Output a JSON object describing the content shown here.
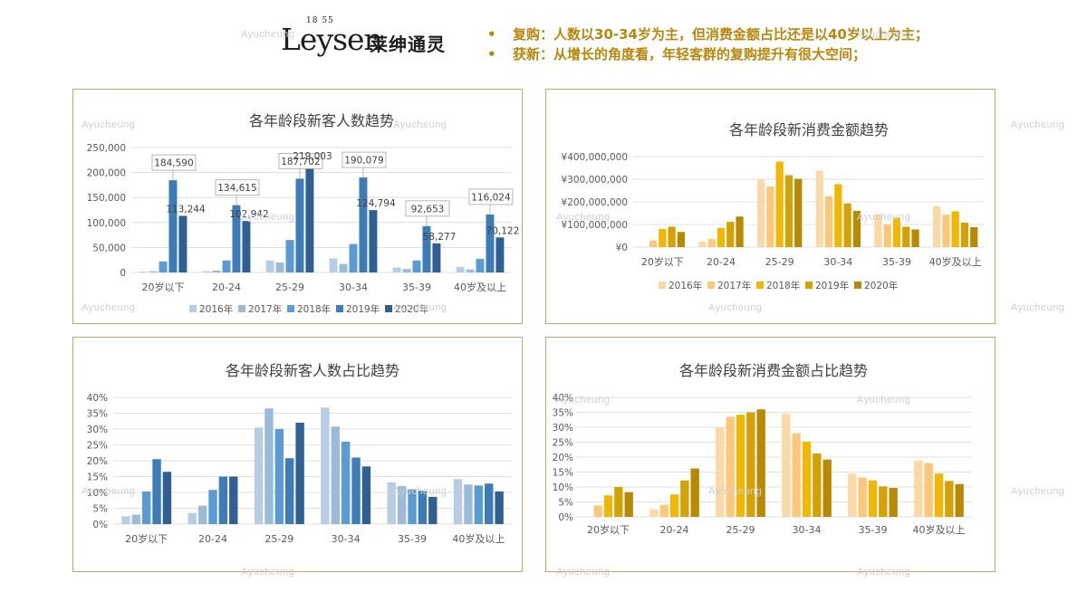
{
  "brand": {
    "wordmark": "Leysen",
    "year": "18 55",
    "chinese_name": "莱绅通灵"
  },
  "watermark": "Ayucheung",
  "bullets": [
    {
      "marker": "•",
      "text": "复购：人数以30-34岁为主，但消费金额占比还是以40岁以上为主；"
    },
    {
      "marker": "•",
      "text": "获新：从增长的角度看，年轻客群的复购提升有很大空间；"
    }
  ],
  "colors": {
    "accent_text": "#b8860b",
    "border": "#bfa76a",
    "blue_series": [
      "#b8cce4",
      "#9bbbd9",
      "#5b9bd5",
      "#3e7cb8",
      "#2f5f93"
    ],
    "gold_series": [
      "#fbd9a7",
      "#fdc77a",
      "#f2b705",
      "#d4a106",
      "#b88a04"
    ]
  },
  "chart_data": [
    {
      "type": "bar",
      "title": "各年龄段新客人数趋势",
      "categories": [
        "20岁以下",
        "20-24",
        "25-29",
        "30-34",
        "35-39",
        "40岁及以上"
      ],
      "legend": [
        "2016年",
        "2017年",
        "2018年",
        "2019年",
        "2020年"
      ],
      "series": [
        {
          "name": "2016年",
          "values": [
            1500,
            2500,
            24000,
            28000,
            10000,
            11000
          ]
        },
        {
          "name": "2017年",
          "values": [
            2500,
            4000,
            20000,
            17000,
            7000,
            6000
          ]
        },
        {
          "name": "2018年",
          "values": [
            22000,
            24000,
            65000,
            57000,
            24000,
            27000
          ]
        },
        {
          "name": "2019年",
          "values": [
            184590,
            134615,
            187702,
            190079,
            92653,
            116024
          ]
        },
        {
          "name": "2020年",
          "values": [
            113244,
            102942,
            219003,
            124794,
            58277,
            70122
          ]
        }
      ],
      "yticks": [
        "0",
        "50,000",
        "100,000",
        "150,000",
        "200,000",
        "250,000"
      ],
      "ylim": [
        0,
        250000
      ],
      "data_labels": [
        {
          "category": "20岁以下",
          "series": "2019年",
          "text": "184,590",
          "callout": true
        },
        {
          "category": "20岁以下",
          "series": "2020年",
          "text": "113,244",
          "callout": false
        },
        {
          "category": "20-24",
          "series": "2019年",
          "text": "134,615",
          "callout": true
        },
        {
          "category": "20-24",
          "series": "2020年",
          "text": "102,942",
          "callout": false
        },
        {
          "category": "25-29",
          "series": "2019年",
          "text": "187,702",
          "callout": true
        },
        {
          "category": "25-29",
          "series": "2020年",
          "text": "219,003",
          "callout": false
        },
        {
          "category": "30-34",
          "series": "2019年",
          "text": "190,079",
          "callout": true
        },
        {
          "category": "30-34",
          "series": "2020年",
          "text": "124,794",
          "callout": false
        },
        {
          "category": "35-39",
          "series": "2019年",
          "text": "92,653",
          "callout": true
        },
        {
          "category": "35-39",
          "series": "2020年",
          "text": "58,277",
          "callout": false
        },
        {
          "category": "40岁及以上",
          "series": "2019年",
          "text": "116,024",
          "callout": true
        },
        {
          "category": "40岁及以上",
          "series": "2020年",
          "text": "70,122",
          "callout": false
        }
      ],
      "legend_position": "bottom",
      "palette": "blue"
    },
    {
      "type": "bar",
      "title": "各年龄段新消费金额趋势",
      "categories": [
        "20岁以下",
        "20-24",
        "25-29",
        "30-34",
        "35-39",
        "40岁及以上"
      ],
      "legend": [
        "2016年",
        "2017年",
        "2018年",
        "2019年",
        "2020年"
      ],
      "series": [
        {
          "name": "2016年",
          "values": [
            0,
            25000000,
            298000000,
            338000000,
            145000000,
            180000000
          ]
        },
        {
          "name": "2017年",
          "values": [
            30000000,
            35000000,
            268000000,
            225000000,
            100000000,
            143000000
          ]
        },
        {
          "name": "2018年",
          "values": [
            80000000,
            85000000,
            378000000,
            278000000,
            130000000,
            158000000
          ]
        },
        {
          "name": "2019年",
          "values": [
            90000000,
            112000000,
            318000000,
            193000000,
            90000000,
            108000000
          ]
        },
        {
          "name": "2020年",
          "values": [
            67000000,
            135000000,
            302000000,
            160000000,
            78000000,
            88000000
          ]
        }
      ],
      "yticks": [
        "¥0",
        "¥100,000,000",
        "¥200,000,000",
        "¥300,000,000",
        "¥400,000,000"
      ],
      "ylim": [
        0,
        400000000
      ],
      "legend_position": "bottom",
      "palette": "gold"
    },
    {
      "type": "bar",
      "title": "各年龄段新客人数占比趋势",
      "categories": [
        "20岁以下",
        "20-24",
        "25-29",
        "30-34",
        "35-39",
        "40岁及以上"
      ],
      "series": [
        {
          "name": "2016年",
          "values": [
            2.5,
            3.5,
            30.5,
            36.8,
            13.2,
            14.2
          ]
        },
        {
          "name": "2017年",
          "values": [
            3.0,
            5.8,
            36.5,
            30.8,
            12.0,
            12.5
          ]
        },
        {
          "name": "2018年",
          "values": [
            10.3,
            10.8,
            30.0,
            26.0,
            11.0,
            12.2
          ]
        },
        {
          "name": "2019年",
          "values": [
            20.5,
            15.0,
            20.8,
            21.0,
            10.5,
            12.8
          ]
        },
        {
          "name": "2020年",
          "values": [
            16.5,
            15.0,
            32.0,
            18.2,
            8.6,
            10.3
          ]
        }
      ],
      "yticks": [
        "0%",
        "5%",
        "10%",
        "15%",
        "20%",
        "25%",
        "30%",
        "35%",
        "40%"
      ],
      "ylim": [
        0,
        40
      ],
      "palette": "blue"
    },
    {
      "type": "bar",
      "title": "各年龄段新消费金额占比趋势",
      "categories": [
        "20岁以下",
        "20-24",
        "25-29",
        "30-34",
        "35-39",
        "40岁及以上"
      ],
      "series": [
        {
          "name": "2016年",
          "values": [
            0,
            2.5,
            30.0,
            34.5,
            14.5,
            18.8
          ]
        },
        {
          "name": "2017年",
          "values": [
            3.8,
            4.0,
            33.5,
            28.0,
            13.2,
            18.0
          ]
        },
        {
          "name": "2018年",
          "values": [
            7.2,
            7.5,
            34.2,
            25.2,
            12.2,
            14.5
          ]
        },
        {
          "name": "2019年",
          "values": [
            10.0,
            12.2,
            35.0,
            21.2,
            10.2,
            12.0
          ]
        },
        {
          "name": "2020年",
          "values": [
            8.3,
            16.2,
            36.0,
            19.2,
            9.7,
            11.0
          ]
        }
      ],
      "yticks": [
        "0%",
        "5%",
        "10%",
        "15%",
        "20%",
        "25%",
        "30%",
        "35%",
        "40%"
      ],
      "ylim": [
        0,
        40
      ],
      "palette": "gold"
    }
  ]
}
